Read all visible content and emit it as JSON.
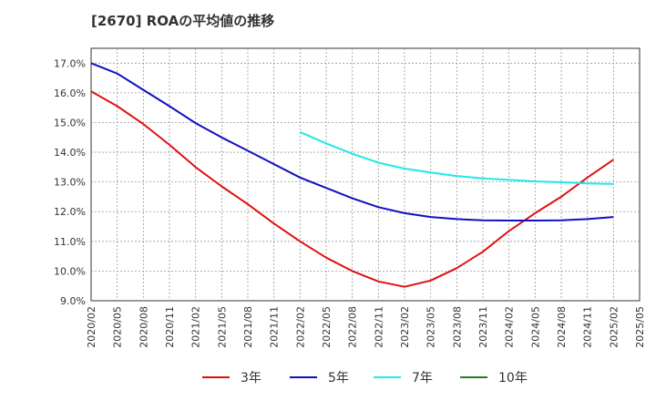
{
  "title": "[2670]  ROAの平均値の推移",
  "chart_data": {
    "type": "line",
    "title": "[2670]  ROAの平均値の推移",
    "xlabel": "",
    "ylabel": "",
    "ylim": [
      9.0,
      17.5
    ],
    "y_ticks": [
      "9.0%",
      "10.0%",
      "11.0%",
      "12.0%",
      "13.0%",
      "14.0%",
      "15.0%",
      "16.0%",
      "17.0%"
    ],
    "x_ticks": [
      "2020/02",
      "2020/05",
      "2020/08",
      "2020/11",
      "2021/02",
      "2021/05",
      "2021/08",
      "2021/11",
      "2022/02",
      "2022/05",
      "2022/08",
      "2022/11",
      "2023/02",
      "2023/05",
      "2023/08",
      "2023/11",
      "2024/02",
      "2024/05",
      "2024/08",
      "2024/11",
      "2025/02",
      "2025/05"
    ],
    "grid": true,
    "legend_position": "bottom",
    "series": [
      {
        "name": "3年",
        "color": "#e01010",
        "points": [
          [
            "2020/02",
            16.05
          ],
          [
            "2020/05",
            15.55
          ],
          [
            "2020/08",
            14.95
          ],
          [
            "2020/11",
            14.25
          ],
          [
            "2021/02",
            13.5
          ],
          [
            "2021/05",
            12.85
          ],
          [
            "2021/08",
            12.25
          ],
          [
            "2021/11",
            11.6
          ],
          [
            "2022/02",
            11.0
          ],
          [
            "2022/05",
            10.45
          ],
          [
            "2022/08",
            10.0
          ],
          [
            "2022/11",
            9.65
          ],
          [
            "2023/02",
            9.47
          ],
          [
            "2023/05",
            9.68
          ],
          [
            "2023/08",
            10.1
          ],
          [
            "2023/11",
            10.65
          ],
          [
            "2024/02",
            11.35
          ],
          [
            "2024/05",
            11.95
          ],
          [
            "2024/08",
            12.5
          ],
          [
            "2024/11",
            13.15
          ],
          [
            "2025/02",
            13.75
          ]
        ]
      },
      {
        "name": "5年",
        "color": "#1010c0",
        "points": [
          [
            "2020/02",
            17.0
          ],
          [
            "2020/05",
            16.65
          ],
          [
            "2020/08",
            16.1
          ],
          [
            "2020/11",
            15.55
          ],
          [
            "2021/02",
            14.98
          ],
          [
            "2021/05",
            14.5
          ],
          [
            "2021/08",
            14.05
          ],
          [
            "2021/11",
            13.6
          ],
          [
            "2022/02",
            13.15
          ],
          [
            "2022/05",
            12.8
          ],
          [
            "2022/08",
            12.45
          ],
          [
            "2022/11",
            12.15
          ],
          [
            "2023/02",
            11.95
          ],
          [
            "2023/05",
            11.82
          ],
          [
            "2023/08",
            11.75
          ],
          [
            "2023/11",
            11.71
          ],
          [
            "2024/02",
            11.7
          ],
          [
            "2024/05",
            11.7
          ],
          [
            "2024/08",
            11.71
          ],
          [
            "2024/11",
            11.75
          ],
          [
            "2025/02",
            11.82
          ]
        ]
      },
      {
        "name": "7年",
        "color": "#22e8e8",
        "points": [
          [
            "2022/02",
            14.68
          ],
          [
            "2022/05",
            14.3
          ],
          [
            "2022/08",
            13.95
          ],
          [
            "2022/11",
            13.65
          ],
          [
            "2023/02",
            13.45
          ],
          [
            "2023/05",
            13.32
          ],
          [
            "2023/08",
            13.2
          ],
          [
            "2023/11",
            13.12
          ],
          [
            "2024/02",
            13.07
          ],
          [
            "2024/05",
            13.02
          ],
          [
            "2024/08",
            12.99
          ],
          [
            "2024/11",
            12.95
          ],
          [
            "2025/02",
            12.93
          ]
        ]
      },
      {
        "name": "10年",
        "color": "#208020",
        "points": []
      }
    ]
  }
}
